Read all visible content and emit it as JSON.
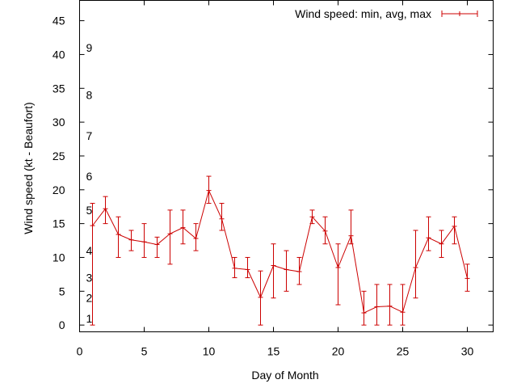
{
  "chart_data": {
    "type": "line",
    "title": "",
    "xlabel": "Day of Month",
    "ylabel": "Wind speed (kt - Beaufort)",
    "xlim": [
      0,
      32
    ],
    "ylim": [
      -1,
      48
    ],
    "x_ticks": [
      0,
      5,
      10,
      15,
      20,
      25,
      30
    ],
    "y_ticks": [
      0,
      5,
      10,
      15,
      20,
      25,
      30,
      35,
      40,
      45
    ],
    "grid": false,
    "legend_position": "top-right",
    "beaufort_scale": [
      {
        "label": "1",
        "y": 1
      },
      {
        "label": "2",
        "y": 4
      },
      {
        "label": "3",
        "y": 7
      },
      {
        "label": "4",
        "y": 11
      },
      {
        "label": "5",
        "y": 17
      },
      {
        "label": "6",
        "y": 22
      },
      {
        "label": "7",
        "y": 28
      },
      {
        "label": "8",
        "y": 34
      },
      {
        "label": "9",
        "y": 41
      }
    ],
    "series": [
      {
        "name": "Wind speed: min, avg, max",
        "color": "#cc0000",
        "x": [
          1,
          2,
          3,
          4,
          5,
          6,
          7,
          8,
          9,
          10,
          11,
          12,
          13,
          14,
          15,
          16,
          17,
          18,
          19,
          20,
          21,
          22,
          23,
          24,
          25,
          26,
          27,
          28,
          29,
          30
        ],
        "avg": [
          14.7,
          17.2,
          13.4,
          12.6,
          12.3,
          11.9,
          13.5,
          14.4,
          12.8,
          19.9,
          15.7,
          8.4,
          8.2,
          4.1,
          8.8,
          8.2,
          7.9,
          16.0,
          13.9,
          8.5,
          13.2,
          1.8,
          2.7,
          2.8,
          1.9,
          8.5,
          12.9,
          12.0,
          14.6,
          6.9
        ],
        "min": [
          0,
          15,
          10,
          11,
          10,
          10,
          9,
          12,
          11,
          18,
          14,
          7,
          7,
          0,
          4,
          5,
          6,
          15,
          12,
          3,
          12,
          0,
          0,
          0,
          0,
          4,
          11,
          10,
          12,
          5
        ],
        "max": [
          18,
          19,
          16,
          14,
          15,
          13,
          17,
          17,
          15,
          22,
          18,
          10,
          10,
          8,
          12,
          11,
          10,
          17,
          16,
          12,
          17,
          5,
          6,
          6,
          6,
          14,
          16,
          14,
          16,
          9
        ]
      }
    ]
  }
}
